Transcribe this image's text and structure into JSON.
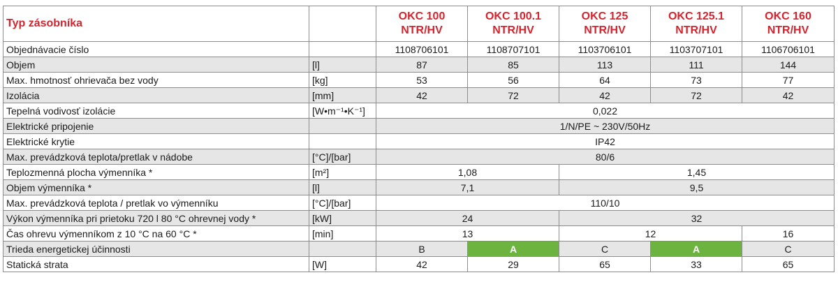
{
  "table": {
    "header": {
      "label": "Typ zásobníka",
      "models": [
        {
          "line1": "OKC 100",
          "line2": "NTR/HV"
        },
        {
          "line1": "OKC 100.1",
          "line2": "NTR/HV"
        },
        {
          "line1": "OKC 125",
          "line2": "NTR/HV"
        },
        {
          "line1": "OKC 125.1",
          "line2": "NTR/HV"
        },
        {
          "line1": "OKC 160",
          "line2": "NTR/HV"
        }
      ]
    },
    "rows": [
      {
        "label": "Objednávacie číslo",
        "unit": "",
        "values": [
          "1108706101",
          "1108707101",
          "1103706101",
          "1103707101",
          "1106706101"
        ]
      },
      {
        "label": "Objem",
        "unit": "[l]",
        "values": [
          "87",
          "85",
          "113",
          "111",
          "144"
        ]
      },
      {
        "label": "Max. hmotnosť ohrievača bez vody",
        "unit": "[kg]",
        "values": [
          "53",
          "56",
          "64",
          "73",
          "77"
        ]
      },
      {
        "label": "Izolácia",
        "unit": "[mm]",
        "values": [
          "42",
          "72",
          "42",
          "72",
          "42"
        ]
      },
      {
        "label": "Tepelná vodivosť izolácie",
        "unit": "[W•m⁻¹•K⁻¹]",
        "merged": "0,022"
      },
      {
        "label": "Elektrické pripojenie",
        "unit": "",
        "merged": "1/N/PE ~ 230V/50Hz"
      },
      {
        "label": "Elektrické krytie",
        "unit": "",
        "merged": "IP42"
      },
      {
        "label": "Max. prevádzková teplota/pretlak v nádobe",
        "unit": "[°C]/[bar]",
        "merged": "80/6"
      },
      {
        "label": "Teplozmenná plocha výmenníka *",
        "unit": "[m²]",
        "pair": [
          "1,08",
          "1,45"
        ]
      },
      {
        "label": "Objem výmenníka *",
        "unit": "[l]",
        "pair": [
          "7,1",
          "9,5"
        ]
      },
      {
        "label": "Max. prevádzková teplota / pretlak vo výmenníku",
        "unit": "[°C]/[bar]",
        "merged": "110/10"
      },
      {
        "label": "Výkon výmenníka pri prietoku 720 l 80 °C ohrevnej vody *",
        "unit": "[kW]",
        "pair": [
          "24",
          "32"
        ]
      },
      {
        "label": "Čas ohrevu výmenníkom z 10 °C na 60 °C *",
        "unit": "[min]",
        "heat_time": [
          "13",
          "12",
          "16"
        ]
      },
      {
        "label": "Trieda energetickej účinnosti",
        "unit": "",
        "values": [
          "B",
          "A",
          "C",
          "A",
          "C"
        ]
      },
      {
        "label": "Statická strata",
        "unit": "[W]",
        "values": [
          "42",
          "29",
          "65",
          "33",
          "65"
        ]
      }
    ],
    "colors": {
      "header_text": "#d6242f",
      "class_a_fill": "#6cb33f",
      "stripe": "#e6e6e6",
      "border": "#8c8c8c"
    }
  }
}
